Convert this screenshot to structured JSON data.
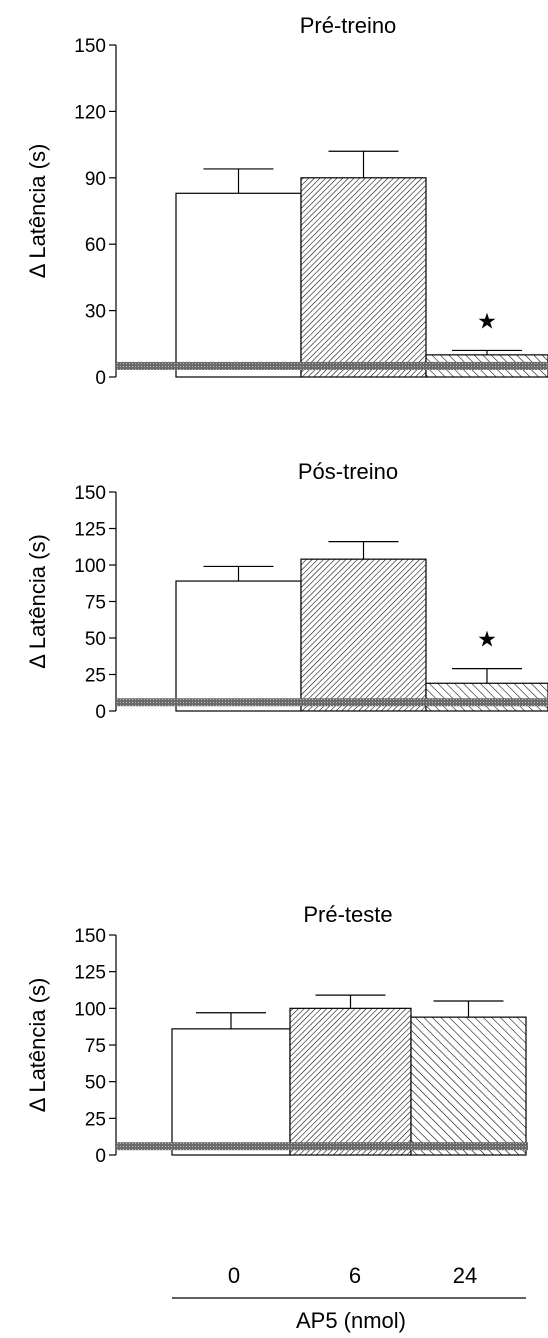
{
  "chart_data": [
    {
      "type": "bar",
      "title": "Pré-treino",
      "ylabel": "Δ Latência (s)",
      "ylim": [
        0,
        150
      ],
      "yticks": [
        "0",
        "30",
        "60",
        "90",
        "120",
        "150"
      ],
      "categories": [
        "0",
        "6",
        "24"
      ],
      "values": [
        83,
        90,
        10
      ],
      "errors": [
        11,
        12,
        2
      ],
      "significance": [
        "",
        "",
        "★"
      ],
      "baseline": 5,
      "patterns": [
        "none",
        "dense-diagonal",
        "diagonal"
      ]
    },
    {
      "type": "bar",
      "title": "Pós-treino",
      "ylabel": "Δ Latência (s)",
      "ylim": [
        0,
        150
      ],
      "yticks": [
        "0",
        "25",
        "50",
        "75",
        "100",
        "125",
        "150"
      ],
      "categories": [
        "0",
        "6",
        "24"
      ],
      "values": [
        89,
        104,
        19
      ],
      "errors": [
        10,
        12,
        10
      ],
      "significance": [
        "",
        "",
        "★"
      ],
      "baseline": 6,
      "patterns": [
        "none",
        "dense-diagonal",
        "diagonal"
      ]
    },
    {
      "type": "bar",
      "title": "Pré-teste",
      "ylabel": "Δ Latência (s)",
      "ylim": [
        0,
        150
      ],
      "yticks": [
        "0",
        "25",
        "50",
        "75",
        "100",
        "125",
        "150"
      ],
      "categories": [
        "0",
        "6",
        "24"
      ],
      "values": [
        86,
        100,
        94
      ],
      "errors": [
        11,
        9,
        11
      ],
      "significance": [
        "",
        "",
        ""
      ],
      "baseline": 6,
      "patterns": [
        "none",
        "dense-diagonal",
        "diagonal"
      ]
    }
  ],
  "x_axis": {
    "tick_labels": [
      "0",
      "6",
      "24"
    ],
    "label": "AP5 (nmol)"
  }
}
